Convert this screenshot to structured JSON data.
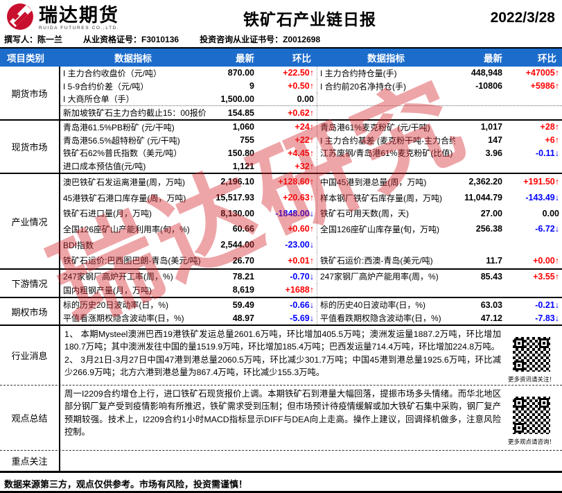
{
  "header": {
    "brand": "瑞达期货",
    "brand_sub": "RUIDA FUTURES CO.,LTD.",
    "title": "铁矿石产业链日报",
    "date": "2022/3/28"
  },
  "meta": {
    "author": "撰写人：陈一兰",
    "license1": "从业资格证号：F3010136",
    "license2": "投资咨询从业证书号：Z0012698"
  },
  "table": {
    "headers": [
      "项目类别",
      "数据指标",
      "最新",
      "环比",
      "数据指标",
      "最新",
      "环比"
    ],
    "sections": [
      {
        "id": "futures",
        "label": "期货市场",
        "rows": [
          {
            "i1": "I 主力合约收盘价（元/吨）",
            "v1": "870.00",
            "c1": "+22.50",
            "d1": "up",
            "i2": "I 主力合约持仓量(手)",
            "v2": "448,948",
            "c2": "+47005",
            "d2": "up"
          },
          {
            "i1": "I 5-9合约价差（元/吨）",
            "v1": "9",
            "c1": "+0.50",
            "d1": "up",
            "i2": "I 合约前20名净持仓(手)",
            "v2": "-10806",
            "c2": "+5986",
            "d2": "up"
          },
          {
            "i1": "I 大商所仓单（手）",
            "v1": "1,500.00",
            "c1": "0.00",
            "d1": "flat",
            "i2": "",
            "v2": "",
            "c2": "",
            "d2": ""
          },
          {
            "i1": "新加坡铁矿石主力合约截止15：00报价(美元/吨",
            "v1": "154.85",
            "c1": "+0.62",
            "d1": "up",
            "i2": "",
            "v2": "",
            "c2": "",
            "d2": "",
            "sep": true
          }
        ]
      },
      {
        "id": "spot",
        "label": "现货市场",
        "rows": [
          {
            "i1": "青岛港61.5%PB粉矿 (元/干吨)",
            "v1": "1,060",
            "c1": "+24",
            "d1": "up",
            "i2": "青岛港61%麦克粉矿 (元/干吨)",
            "v2": "1,017",
            "c2": "+28",
            "d2": "up"
          },
          {
            "i1": "青岛港56.5%超特粉矿 (元/干吨)",
            "v1": "755",
            "c1": "+22",
            "d1": "up",
            "i2": "I 主力合约基差 (麦克粉干吨-主力合约)",
            "v2": "147",
            "c2": "+6",
            "d2": "up"
          },
          {
            "i1": "铁矿石62%普氏指数（美元/吨）",
            "v1": "150.80",
            "c1": "+4.45",
            "d1": "up",
            "i2": "江苏废钢/青岛港61%麦克粉矿(比值)",
            "v2": "3.96",
            "c2": "-0.11",
            "d2": "down"
          },
          {
            "i1": "进口成本预估值(元/吨)",
            "v1": "1,121",
            "c1": "+32",
            "d1": "up",
            "i2": "",
            "v2": "",
            "c2": "",
            "d2": ""
          }
        ]
      },
      {
        "id": "industry",
        "label": "产业情况",
        "rows": [
          {
            "i1": "澳巴铁矿石发运离港量(周，万吨)",
            "v1": "2,196.10",
            "c1": "+128.60",
            "d1": "up",
            "i2": "中国45港到港总量(周，万吨)",
            "v2": "2,362.20",
            "c2": "+191.50",
            "d2": "up"
          },
          {
            "i1": "45港铁矿石港口库存量(周，万吨)",
            "v1": "15,517.93",
            "c1": "+20.63",
            "d1": "up",
            "i2": "样本钢厂铁矿石库存量(周，万吨)",
            "v2": "11,044.79",
            "c2": "-143.49",
            "d2": "down"
          },
          {
            "i1": "铁矿石进口量(月，万吨)",
            "v1": "8,130.00",
            "c1": "-1848.00",
            "d1": "down",
            "i2": "铁矿石可用天数(周，天)",
            "v2": "27.00",
            "c2": "0.00",
            "d2": "flat"
          },
          {
            "i1": "全国126座矿山产能利用率(旬，%)",
            "v1": "60.66",
            "c1": "+0.60",
            "d1": "up",
            "i2": "全国126座矿山库存量(旬，万吨)",
            "v2": "256.38",
            "c2": "-6.72",
            "d2": "down"
          },
          {
            "i1": "BDI指数",
            "v1": "2,544.00",
            "c1": "-23.00",
            "d1": "down",
            "i2": "",
            "v2": "",
            "c2": "",
            "d2": ""
          },
          {
            "i1": "铁矿石运价:巴西图巴朗-青岛(美元/吨)",
            "v1": "26.70",
            "c1": "+0.01",
            "d1": "up",
            "i2": "铁矿石运价:西澳-青岛(美元/吨)",
            "v2": "11.7",
            "c2": "+0.00",
            "d2": "up"
          }
        ]
      },
      {
        "id": "down",
        "label": "下游情况",
        "rows": [
          {
            "i1": "247家钢厂高炉开工率(周，%)",
            "v1": "78.21",
            "c1": "-0.70",
            "d1": "down",
            "i2": "247家钢厂高炉产能用率(周，%)",
            "v2": "85.43",
            "c2": "+3.55",
            "d2": "up"
          },
          {
            "i1": "国内粗钢产量(月，万吨)",
            "v1": "8,619",
            "c1": "+1688",
            "d1": "up",
            "i2": "",
            "v2": "",
            "c2": "",
            "d2": ""
          }
        ]
      },
      {
        "id": "options",
        "label": "期权市场",
        "rows": [
          {
            "i1": "标的历史20日波动率(日，%)",
            "v1": "59.49",
            "c1": "-0.66",
            "d1": "down",
            "i2": "标的历史40日波动率(日，%)",
            "v2": "63.03",
            "c2": "-0.21",
            "d2": "down"
          },
          {
            "i1": "平值看涨期权隐含波动率(日，%)",
            "v1": "48.97",
            "c1": "-5.69",
            "d1": "down",
            "i2": "平值看跌期权隐含波动率(日，%)",
            "v2": "47.12",
            "c2": "-7.83",
            "d2": "down"
          }
        ]
      }
    ]
  },
  "news": {
    "label": "行业消息",
    "text": "1、 本期Mysteel澳洲巴西19港铁矿发运总量2601.6万吨，环比增加405.5万吨；澳洲发运量1887.2万吨，环比增加180.7万吨；其中澳洲发往中国的量1519.9万吨，环比增加185.4万吨；巴西发运量714.4万吨，环比增加224.8万吨。\n2、 3月21日-3月27日中国47港到港总量2060.5万吨，环比减少301.7万吨；中国45港到港总量1925.6万吨，环比减少266.9万吨；北方六港到港总量为867.4万吨，环比减少155.3万吨。",
    "qr_caption": "更多资讯请关注！"
  },
  "view": {
    "label": "观点总结",
    "text": "周一I2209合约增仓上行，进口铁矿石现货报价上调。本期铁矿石到港量大幅回落，提振市场多头情绪。而华北地区部分钢厂复产受到疫情影响有所推迟，铁矿需求受到压制；但市场预计待疫情缓解或加大铁矿石集中采购，钢厂复产预期较强。技术上，I2209合约1小时MACD指标显示DIFF与DEA向上走高。操作上建议，回调择机做多，注意风险控制。",
    "qr_caption": "更多观点请咨询！"
  },
  "focus": {
    "label": "重点关注",
    "text": ""
  },
  "footer": "数据来源第三方，观点仅供参考。市场有风险，投资需谨慎！",
  "watermark": "瑞达研究",
  "colors": {
    "up": "#FF0000",
    "down": "#0000FF",
    "header_bg": "#1C6CCB",
    "brand_red": "#C8102E"
  }
}
